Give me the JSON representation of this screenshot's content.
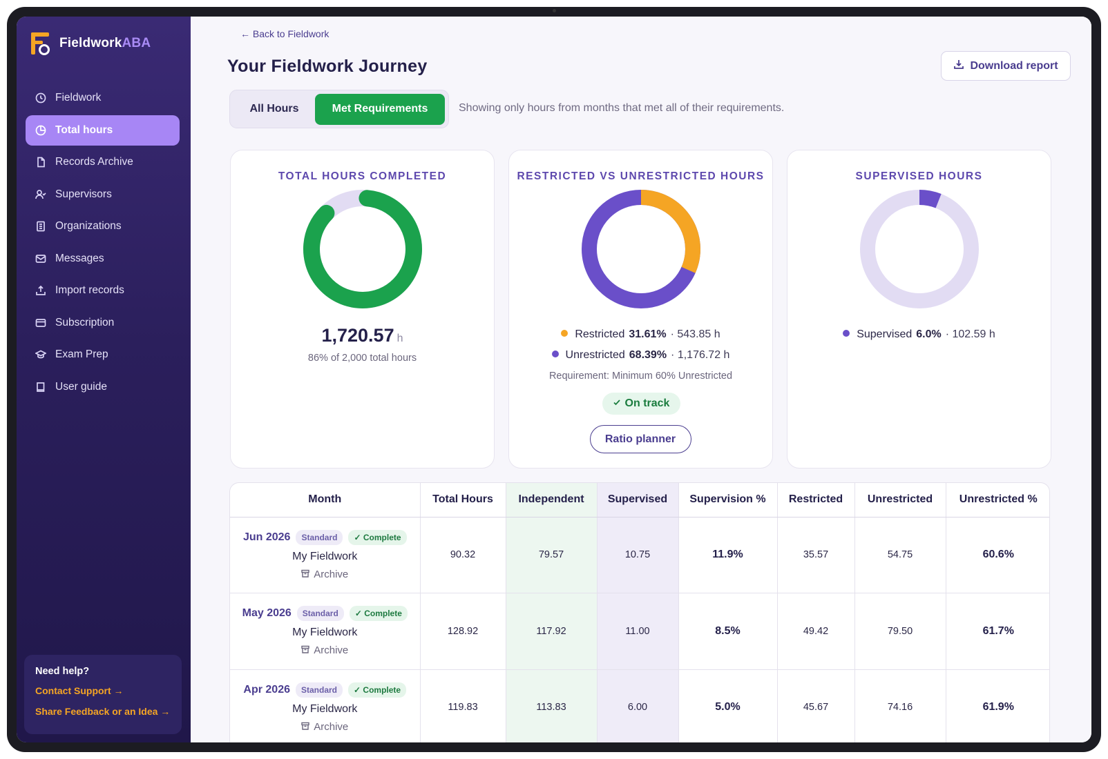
{
  "brand": {
    "name_main": "Fieldwork",
    "name_accent": "ABA"
  },
  "sidebar": {
    "items": [
      {
        "label": "Fieldwork",
        "icon": "clock-icon"
      },
      {
        "label": "Total hours",
        "icon": "pie-icon",
        "active": true
      },
      {
        "label": "Records Archive",
        "icon": "file-icon"
      },
      {
        "label": "Supervisors",
        "icon": "users-icon"
      },
      {
        "label": "Organizations",
        "icon": "building-icon"
      },
      {
        "label": "Messages",
        "icon": "mail-icon"
      },
      {
        "label": "Import records",
        "icon": "upload-icon"
      },
      {
        "label": "Subscription",
        "icon": "card-icon"
      },
      {
        "label": "Exam Prep",
        "icon": "graduation-icon"
      },
      {
        "label": "User guide",
        "icon": "book-icon"
      }
    ],
    "help": {
      "title": "Need help?",
      "contact": "Contact Support →",
      "feedback": "Share Feedback or an Idea →"
    }
  },
  "header": {
    "back": "← Back to Fieldwork",
    "title": "Your Fieldwork Journey",
    "download": "Download report"
  },
  "filter": {
    "all": "All Hours",
    "met": "Met Requirements",
    "selected": "Met Requirements",
    "note": "Showing only hours from months that met all of their requirements."
  },
  "cards": {
    "total": {
      "title": "TOTAL HOURS COMPLETED",
      "value": "1,720.57",
      "unit": "h",
      "sub": "86% of 2,000 total hours",
      "fraction": 0.86
    },
    "restricted": {
      "title": "RESTRICTED VS UNRESTRICTED HOURS",
      "restricted_label": "Restricted",
      "restricted_pct": "31.61%",
      "restricted_hours": "· 543.85 h",
      "unrestricted_label": "Unrestricted",
      "unrestricted_pct": "68.39%",
      "unrestricted_hours": "· 1,176.72 h",
      "requirement": "Requirement: Minimum 60% Unrestricted",
      "status": "On track",
      "planner": "Ratio planner",
      "restricted_fraction": 0.3161
    },
    "supervised": {
      "title": "SUPERVISED HOURS",
      "label": "Supervised",
      "pct": "6.0%",
      "hours": "· 102.59 h",
      "fraction": 0.06
    }
  },
  "colors": {
    "green": "#1ba24d",
    "purple": "#6a4fc9",
    "orange": "#f5a524",
    "track": "#e2dcf3"
  },
  "table": {
    "headers": [
      "Month",
      "Total Hours",
      "Independent",
      "Supervised",
      "Supervision %",
      "Restricted",
      "Unrestricted",
      "Unrestricted %"
    ],
    "rows": [
      {
        "month": "Jun 2026",
        "type": "Standard",
        "status": "✓ Complete",
        "org": "My Fieldwork",
        "archive": "Archive",
        "total": "90.32",
        "independent": "79.57",
        "supervised": "10.75",
        "supervision_pct": "11.9%",
        "restricted": "35.57",
        "unrestricted": "54.75",
        "unrestricted_pct": "60.6%"
      },
      {
        "month": "May 2026",
        "type": "Standard",
        "status": "✓ Complete",
        "org": "My Fieldwork",
        "archive": "Archive",
        "total": "128.92",
        "independent": "117.92",
        "supervised": "11.00",
        "supervision_pct": "8.5%",
        "restricted": "49.42",
        "unrestricted": "79.50",
        "unrestricted_pct": "61.7%"
      },
      {
        "month": "Apr 2026",
        "type": "Standard",
        "status": "✓ Complete",
        "org": "My Fieldwork",
        "archive": "Archive",
        "total": "119.83",
        "independent": "113.83",
        "supervised": "6.00",
        "supervision_pct": "5.0%",
        "restricted": "45.67",
        "unrestricted": "74.16",
        "unrestricted_pct": "61.9%"
      }
    ]
  }
}
